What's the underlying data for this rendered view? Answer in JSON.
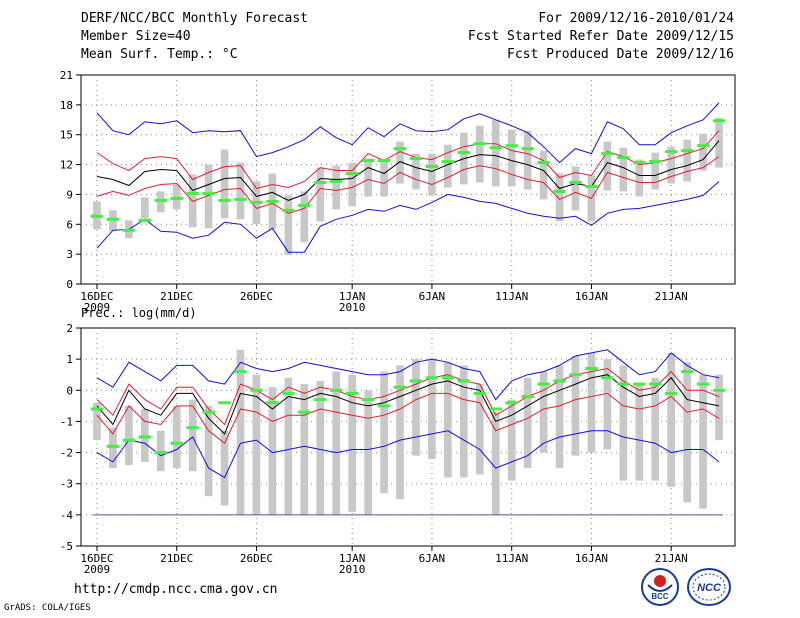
{
  "header": {
    "title": "DERF/NCC/BCC Monthly Forecast",
    "member_size": "Member Size=40",
    "variable": "Mean Surf. Temp.: °C",
    "period": "For 2009/12/16-2010/01/24",
    "start_date": "Fcst Started Refer Date 2009/12/15",
    "produced_date": "Fcst Produced Date 2009/12/16"
  },
  "footer": {
    "url": "http://cmdp.ncc.cma.gov.cn",
    "credit": "GrADS: COLA/IGES"
  },
  "logos": {
    "bcc": "BCC",
    "ncc": "NCC"
  },
  "colors": {
    "max": "#1010e0",
    "pct": "#e02030",
    "median": "#000000",
    "box": "#c8c8c8",
    "mean": "#44ee44",
    "floor": "#5555aa"
  },
  "chart_data": [
    {
      "type": "box-ensemble",
      "title": "Mean Surf. Temp.: °C",
      "x_tick_labels": [
        "16DEC",
        "21DEC",
        "26DEC",
        "1JAN",
        "6JAN",
        "11JAN",
        "16JAN",
        "21JAN"
      ],
      "x_tick_days": [
        0,
        5,
        10,
        16,
        21,
        26,
        31,
        36
      ],
      "year_labels": [
        {
          "day": 0,
          "text": "2009"
        },
        {
          "day": 16,
          "text": "2010"
        }
      ],
      "ylim": [
        0,
        21
      ],
      "yticks": [
        0,
        3,
        6,
        9,
        12,
        15,
        18,
        21
      ],
      "days": 40,
      "series": {
        "max": [
          17.2,
          15.4,
          15,
          16.3,
          16.1,
          16.4,
          15.2,
          15.4,
          15.3,
          15.4,
          12.8,
          13.2,
          13.8,
          14.5,
          15.8,
          14.7,
          14,
          15.7,
          14.8,
          16.1,
          15.4,
          15.3,
          15.5,
          16.6,
          17.1,
          16.5,
          15.9,
          15.2,
          13.8,
          12.2,
          13.6,
          13.1,
          16.3,
          15.6,
          14,
          14,
          15.2,
          15.9,
          16.5,
          18.2
        ],
        "p_high": [
          13.2,
          12.1,
          11.4,
          12.6,
          12.8,
          12.6,
          10.5,
          11.2,
          11.8,
          11.9,
          9.6,
          10,
          9.7,
          10.3,
          11.7,
          11.4,
          11.4,
          13.1,
          12.4,
          13.3,
          12.7,
          12.5,
          13.2,
          13.8,
          14.1,
          14.1,
          13.4,
          13.1,
          12.4,
          10.7,
          11.2,
          10.9,
          13.3,
          12.8,
          12,
          12.2,
          12.6,
          13.1,
          13.6,
          15.4
        ],
        "median": [
          10.8,
          10.5,
          9.9,
          11.3,
          11.5,
          11.4,
          9.4,
          10,
          10.6,
          10.7,
          8.8,
          9.2,
          8.4,
          9,
          10.6,
          10.5,
          10.6,
          11.7,
          11.1,
          12.3,
          11.7,
          11.3,
          12,
          12.6,
          13,
          12.9,
          12.4,
          12,
          11.4,
          9.6,
          10.1,
          9.8,
          12.2,
          11.7,
          10.9,
          10.9,
          11.5,
          11.9,
          12.5,
          14.4
        ],
        "p_low": [
          8.8,
          9.3,
          8.9,
          9.6,
          10,
          10.1,
          8.3,
          8.9,
          9.5,
          9.6,
          7.6,
          8.1,
          7.1,
          7.6,
          9.6,
          9.4,
          9.7,
          10.5,
          10.1,
          11.2,
          10.5,
          10,
          10.7,
          11.5,
          11.9,
          11.6,
          11,
          10.5,
          10.2,
          8.5,
          9.2,
          8.6,
          11.2,
          10.7,
          10.2,
          10.2,
          10.8,
          11.3,
          11.7,
          12.8
        ],
        "min": [
          3.6,
          5.4,
          5.5,
          6.5,
          5.3,
          5.2,
          4.6,
          4.9,
          6.2,
          6,
          4.6,
          5.6,
          3.2,
          3.2,
          5.8,
          6.5,
          6.9,
          7.5,
          7.3,
          7.9,
          7.5,
          8.2,
          9,
          8.7,
          8.3,
          8.1,
          7.6,
          7.1,
          6.8,
          6.6,
          6.8,
          5.9,
          7.1,
          7.5,
          7.6,
          7.9,
          8.2,
          8.5,
          8.9,
          10.3
        ],
        "box_top": [
          8.3,
          7.4,
          6.4,
          8.7,
          9.3,
          10,
          11,
          12,
          13.5,
          12.2,
          10.3,
          11.1,
          8.9,
          9.3,
          11.7,
          11.9,
          12.2,
          12.6,
          12.4,
          14.3,
          13.1,
          13.1,
          14,
          15.2,
          15.9,
          16.5,
          15.5,
          15.4,
          13.4,
          11.1,
          11.8,
          10.9,
          14.3,
          13.7,
          12.5,
          13.2,
          13.8,
          14.5,
          15.1,
          16.7
        ],
        "box_bottom": [
          5.5,
          5.3,
          4.6,
          6.6,
          7.2,
          7.5,
          5.7,
          5.6,
          6.6,
          6.5,
          6,
          5.5,
          2.9,
          4.2,
          6.3,
          7.5,
          7.8,
          8.8,
          8.8,
          10.1,
          9.5,
          8.9,
          9.7,
          10,
          10.2,
          9.8,
          9.8,
          9.5,
          8.5,
          6.3,
          7.4,
          6.3,
          9.4,
          9.3,
          8.8,
          9.5,
          10.1,
          10.3,
          11.4,
          11.7
        ],
        "mean": [
          6.8,
          6.5,
          5.4,
          6.4,
          8.4,
          8.6,
          9.1,
          9.1,
          8.4,
          8.5,
          8.2,
          8.3,
          7.4,
          7.9,
          10.2,
          10.3,
          11.1,
          12.4,
          12.4,
          13.6,
          12.6,
          11.8,
          12.3,
          13.2,
          14.1,
          13.7,
          13.9,
          13.6,
          12.2,
          9.3,
          10.2,
          9.8,
          13.1,
          12.7,
          12.2,
          12.3,
          13.3,
          13.4,
          13.9,
          16.4
        ]
      }
    },
    {
      "type": "box-ensemble",
      "title": "Prec.: log(mm/d)",
      "x_tick_labels": [
        "16DEC",
        "21DEC",
        "26DEC",
        "1JAN",
        "6JAN",
        "11JAN",
        "16JAN",
        "21JAN"
      ],
      "x_tick_days": [
        0,
        5,
        10,
        16,
        21,
        26,
        31,
        36
      ],
      "year_labels": [
        {
          "day": 0,
          "text": "2009"
        },
        {
          "day": 16,
          "text": "2010"
        }
      ],
      "ylim": [
        -5,
        2
      ],
      "yticks": [
        -5,
        -4,
        -3,
        -2,
        -1,
        0,
        1,
        2
      ],
      "days": 40,
      "floor": -4,
      "series": {
        "max": [
          0.4,
          0.1,
          0.9,
          0.6,
          0.3,
          0.8,
          0.8,
          0.3,
          0.2,
          0.9,
          0.7,
          0.6,
          0.7,
          0.9,
          0.8,
          0.7,
          0.6,
          0.5,
          0.5,
          0.6,
          0.9,
          1,
          0.9,
          0.7,
          0.6,
          -0.3,
          0.3,
          0.5,
          0.6,
          0.8,
          1.1,
          1.2,
          1.3,
          0.9,
          0.5,
          0.6,
          1.2,
          0.8,
          0.5,
          0.4
        ],
        "p_high": [
          -0.3,
          -0.8,
          0.2,
          -0.3,
          -0.6,
          0.1,
          0.1,
          -0.6,
          -1.1,
          0.2,
          0,
          -0.3,
          0.1,
          -0.1,
          0.1,
          0,
          -0.2,
          -0.3,
          -0.2,
          0,
          0.2,
          0.4,
          0.5,
          0.3,
          0.2,
          -0.8,
          -0.5,
          -0.2,
          0,
          0.3,
          0.5,
          0.6,
          0.7,
          0.3,
          0,
          0.1,
          0.6,
          0,
          0,
          -0.2
        ],
        "median": [
          -0.5,
          -1.1,
          0,
          -0.6,
          -0.8,
          -0.1,
          -0.1,
          -0.9,
          -1.4,
          -0.1,
          -0.2,
          -0.6,
          -0.2,
          -0.3,
          -0.1,
          -0.2,
          -0.4,
          -0.5,
          -0.4,
          -0.2,
          0,
          0.2,
          0.3,
          0.1,
          0,
          -1,
          -0.8,
          -0.5,
          -0.2,
          0,
          0.2,
          0.4,
          0.5,
          0.1,
          -0.2,
          -0.1,
          0.4,
          -0.3,
          -0.4,
          -0.5
        ],
        "p_low": [
          -0.8,
          -1.4,
          -0.5,
          -1,
          -1.1,
          -0.5,
          -0.5,
          -1.3,
          -1.7,
          -0.6,
          -0.7,
          -1,
          -0.8,
          -0.8,
          -0.6,
          -0.7,
          -0.8,
          -0.9,
          -0.8,
          -0.6,
          -0.3,
          -0.1,
          -0.1,
          -0.3,
          -0.4,
          -1.3,
          -1.1,
          -0.9,
          -0.6,
          -0.5,
          -0.3,
          -0.2,
          -0.1,
          -0.5,
          -0.6,
          -0.5,
          -0.2,
          -0.7,
          -0.6,
          -0.9
        ],
        "min": [
          -2,
          -2.3,
          -1.6,
          -1.7,
          -2.1,
          -1.9,
          -1.5,
          -2.5,
          -2.8,
          -1.7,
          -1.6,
          -2,
          -1.9,
          -1.8,
          -1.9,
          -2,
          -1.9,
          -1.9,
          -1.8,
          -1.6,
          -1.5,
          -1.4,
          -1.3,
          -1.6,
          -1.9,
          -2.5,
          -2.3,
          -2.1,
          -1.7,
          -1.5,
          -1.4,
          -1.3,
          -1.3,
          -1.5,
          -1.6,
          -1.7,
          -2,
          -1.9,
          -1.9,
          -2.3
        ],
        "box_top": [
          -0.4,
          -1.2,
          -0.5,
          -0.6,
          -1.3,
          -0.5,
          -0.3,
          -0.5,
          -1.3,
          1.3,
          0.5,
          0.1,
          0.4,
          0.2,
          0.3,
          0.6,
          0.5,
          0,
          0.6,
          0.8,
          1,
          1,
          0.9,
          0.8,
          0.2,
          -0.7,
          -0.3,
          0.4,
          0.6,
          0.8,
          1.1,
          1.2,
          1,
          0.8,
          0.2,
          0.4,
          1.2,
          0.9,
          0.5,
          0.5
        ],
        "box_bottom": [
          -1.6,
          -2.5,
          -2.4,
          -2.3,
          -2.6,
          -2.5,
          -2.6,
          -3.4,
          -3.7,
          -4,
          -4,
          -4,
          -4,
          -4,
          -4,
          -4,
          -3.9,
          -4,
          -3.3,
          -3.5,
          -2.1,
          -2.2,
          -2.8,
          -2.8,
          -2.7,
          -4,
          -2.9,
          -2.5,
          -2,
          -2.5,
          -2.1,
          -2,
          -1.9,
          -2.9,
          -2.9,
          -2.9,
          -3.1,
          -3.6,
          -3.8,
          -1.6
        ],
        "mean": [
          -0.6,
          -1.8,
          -1.6,
          -1.5,
          -2,
          -1.7,
          -1.2,
          -0.7,
          -0.4,
          0.6,
          0,
          -0.4,
          -0.1,
          -0.7,
          -0.3,
          0,
          -0.1,
          -0.3,
          -0.5,
          0.1,
          0.3,
          0.4,
          0.4,
          0.3,
          -0.1,
          -0.6,
          -0.4,
          -0.2,
          0.2,
          0.3,
          0.5,
          0.7,
          0.4,
          0.2,
          0.2,
          0.2,
          -0.1,
          0.6,
          0.2,
          0
        ]
      }
    }
  ]
}
